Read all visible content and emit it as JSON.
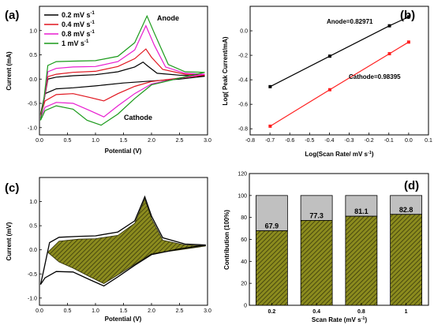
{
  "colors": {
    "s1": "#000000",
    "s2": "#e0151e",
    "s3": "#e81cd0",
    "s4": "#1a9a1a",
    "cathode_fit": "#ff2020",
    "fill_capacitive": "#8b8b1e",
    "fill_diffusion": "#c0c0c0"
  },
  "chart_data": [
    {
      "panel": "(a)",
      "type": "line",
      "xlabel": "Potential (V)",
      "ylabel": "Current (mA)",
      "xlim": [
        0,
        3.0
      ],
      "ylim": [
        -1.15,
        1.5
      ],
      "xticks": [
        "0.0",
        "0.5",
        "1.0",
        "1.5",
        "2.0",
        "2.5",
        "3.0"
      ],
      "yticks": [
        "-1.0",
        "-0.5",
        "0.0",
        "0.5",
        "1.0"
      ],
      "legend": {
        "position": "top-left",
        "entries": [
          "0.2 mV s",
          "0.4 mV s",
          "0.8 mV s",
          "1 mV s"
        ],
        "superscript": "-1"
      },
      "annotations": [
        "Anode",
        "Cathode"
      ],
      "series": [
        {
          "name": "0.2 mV s⁻¹",
          "color": "#000000",
          "upper": [
            [
              0.02,
              -0.72
            ],
            [
              0.08,
              -0.45
            ],
            [
              0.15,
              0.0
            ],
            [
              0.3,
              0.04
            ],
            [
              0.6,
              0.07
            ],
            [
              1.0,
              0.09
            ],
            [
              1.4,
              0.15
            ],
            [
              1.7,
              0.25
            ],
            [
              1.85,
              0.35
            ],
            [
              1.92,
              0.28
            ],
            [
              2.1,
              0.12
            ],
            [
              2.5,
              0.08
            ],
            [
              2.95,
              0.06
            ]
          ],
          "lower": [
            [
              2.95,
              0.06
            ],
            [
              2.5,
              0.0
            ],
            [
              2.0,
              -0.04
            ],
            [
              1.5,
              -0.08
            ],
            [
              1.0,
              -0.14
            ],
            [
              0.6,
              -0.18
            ],
            [
              0.3,
              -0.2
            ],
            [
              0.1,
              -0.3
            ],
            [
              0.02,
              -0.72
            ]
          ]
        },
        {
          "name": "0.4 mV s⁻¹",
          "color": "#e0151e",
          "upper": [
            [
              0.02,
              -0.75
            ],
            [
              0.08,
              -0.45
            ],
            [
              0.15,
              0.05
            ],
            [
              0.3,
              0.1
            ],
            [
              0.6,
              0.14
            ],
            [
              1.0,
              0.16
            ],
            [
              1.4,
              0.26
            ],
            [
              1.7,
              0.42
            ],
            [
              1.9,
              0.62
            ],
            [
              2.0,
              0.45
            ],
            [
              2.2,
              0.2
            ],
            [
              2.6,
              0.1
            ],
            [
              2.95,
              0.08
            ]
          ],
          "lower": [
            [
              2.95,
              0.08
            ],
            [
              2.5,
              0.02
            ],
            [
              2.0,
              -0.05
            ],
            [
              1.7,
              -0.15
            ],
            [
              1.4,
              -0.3
            ],
            [
              1.15,
              -0.45
            ],
            [
              0.9,
              -0.38
            ],
            [
              0.6,
              -0.3
            ],
            [
              0.3,
              -0.32
            ],
            [
              0.1,
              -0.45
            ],
            [
              0.02,
              -0.75
            ]
          ]
        },
        {
          "name": "0.8 mV s⁻¹",
          "color": "#e81cd0",
          "upper": [
            [
              0.02,
              -0.8
            ],
            [
              0.08,
              -0.45
            ],
            [
              0.15,
              0.15
            ],
            [
              0.3,
              0.22
            ],
            [
              0.6,
              0.25
            ],
            [
              1.0,
              0.26
            ],
            [
              1.4,
              0.36
            ],
            [
              1.7,
              0.6
            ],
            [
              1.9,
              1.1
            ],
            [
              2.05,
              0.7
            ],
            [
              2.25,
              0.25
            ],
            [
              2.6,
              0.12
            ],
            [
              2.95,
              0.1
            ]
          ],
          "lower": [
            [
              2.95,
              0.1
            ],
            [
              2.5,
              0.02
            ],
            [
              2.0,
              -0.1
            ],
            [
              1.7,
              -0.3
            ],
            [
              1.4,
              -0.55
            ],
            [
              1.15,
              -0.78
            ],
            [
              0.9,
              -0.65
            ],
            [
              0.6,
              -0.5
            ],
            [
              0.3,
              -0.48
            ],
            [
              0.1,
              -0.58
            ],
            [
              0.02,
              -0.8
            ]
          ]
        },
        {
          "name": "1 mV s⁻¹",
          "color": "#1a9a1a",
          "upper": [
            [
              0.02,
              -0.85
            ],
            [
              0.08,
              -0.4
            ],
            [
              0.15,
              0.28
            ],
            [
              0.3,
              0.36
            ],
            [
              0.6,
              0.37
            ],
            [
              1.0,
              0.38
            ],
            [
              1.4,
              0.47
            ],
            [
              1.7,
              0.75
            ],
            [
              1.92,
              1.3
            ],
            [
              2.05,
              0.95
            ],
            [
              2.3,
              0.3
            ],
            [
              2.6,
              0.15
            ],
            [
              2.95,
              0.14
            ]
          ],
          "lower": [
            [
              2.95,
              0.14
            ],
            [
              2.5,
              0.02
            ],
            [
              2.0,
              -0.12
            ],
            [
              1.7,
              -0.4
            ],
            [
              1.4,
              -0.72
            ],
            [
              1.1,
              -0.95
            ],
            [
              0.85,
              -0.85
            ],
            [
              0.6,
              -0.62
            ],
            [
              0.3,
              -0.55
            ],
            [
              0.1,
              -0.65
            ],
            [
              0.02,
              -0.85
            ]
          ]
        }
      ]
    },
    {
      "panel": "(b)",
      "type": "line",
      "xlabel": "Log(Scan Rate/ mV s",
      "xlabel_sup": "-1",
      "xlabel_end": ")",
      "ylabel": "Log( Peak Current/mA)",
      "xlim": [
        -0.8,
        0.1
      ],
      "ylim": [
        -0.85,
        0.2
      ],
      "xticks": [
        "-0.8",
        "-0.7",
        "-0.6",
        "-0.5",
        "-0.4",
        "-0.3",
        "-0.2",
        "-0.1",
        "0.0",
        "0.1"
      ],
      "yticks": [
        "-0.8",
        "-0.6",
        "-0.4",
        "-0.2",
        "0.0"
      ],
      "annotations": [
        "Anode=0.82971",
        "Cathode=0.98395"
      ],
      "series": [
        {
          "name": "Anode",
          "color": "#000000",
          "x": [
            -0.699,
            -0.398,
            -0.097,
            0.0
          ],
          "y": [
            -0.456,
            -0.207,
            0.041,
            0.114
          ]
        },
        {
          "name": "Cathode",
          "color": "#ff2020",
          "x": [
            -0.699,
            -0.398,
            -0.097,
            0.0
          ],
          "y": [
            -0.779,
            -0.481,
            -0.187,
            -0.092
          ]
        }
      ]
    },
    {
      "panel": "(c)",
      "type": "area",
      "xlabel": "Potential (V)",
      "ylabel": "Current (mV)",
      "xlim": [
        0,
        3.0
      ],
      "ylim": [
        -1.15,
        1.5
      ],
      "xticks": [
        "0.0",
        "0.5",
        "1.0",
        "1.5",
        "2.0",
        "2.5",
        "3.0"
      ],
      "yticks": [
        "-1.0",
        "-0.5",
        "0.0",
        "0.5",
        "1.0"
      ],
      "total_cv": {
        "upper": [
          [
            0.02,
            -0.72
          ],
          [
            0.08,
            -0.4
          ],
          [
            0.18,
            0.15
          ],
          [
            0.35,
            0.26
          ],
          [
            0.7,
            0.28
          ],
          [
            1.0,
            0.29
          ],
          [
            1.4,
            0.37
          ],
          [
            1.7,
            0.6
          ],
          [
            1.88,
            1.1
          ],
          [
            2.0,
            0.7
          ],
          [
            2.2,
            0.25
          ],
          [
            2.6,
            0.12
          ],
          [
            2.97,
            0.1
          ]
        ],
        "lower": [
          [
            2.97,
            0.1
          ],
          [
            2.5,
            0.02
          ],
          [
            2.0,
            -0.1
          ],
          [
            1.7,
            -0.32
          ],
          [
            1.4,
            -0.56
          ],
          [
            1.15,
            -0.75
          ],
          [
            0.9,
            -0.62
          ],
          [
            0.6,
            -0.46
          ],
          [
            0.3,
            -0.45
          ],
          [
            0.1,
            -0.58
          ],
          [
            0.02,
            -0.72
          ]
        ]
      },
      "capacitive": {
        "upper": [
          [
            0.15,
            -0.05
          ],
          [
            0.35,
            0.18
          ],
          [
            0.7,
            0.22
          ],
          [
            1.0,
            0.23
          ],
          [
            1.4,
            0.3
          ],
          [
            1.7,
            0.55
          ],
          [
            1.88,
            1.05
          ],
          [
            2.0,
            0.65
          ],
          [
            2.2,
            0.2
          ],
          [
            2.6,
            0.1
          ],
          [
            2.97,
            0.08
          ]
        ],
        "lower": [
          [
            2.97,
            0.08
          ],
          [
            2.5,
            0.0
          ],
          [
            2.0,
            -0.08
          ],
          [
            1.7,
            -0.3
          ],
          [
            1.4,
            -0.52
          ],
          [
            1.15,
            -0.7
          ],
          [
            0.9,
            -0.56
          ],
          [
            0.6,
            -0.38
          ],
          [
            0.35,
            -0.25
          ],
          [
            0.15,
            -0.05
          ]
        ]
      }
    },
    {
      "panel": "(d)",
      "type": "bar",
      "xlabel": "Scan Rate (mV s",
      "xlabel_sup": "-1",
      "xlabel_end": ")",
      "ylabel": "Contribution (100%)",
      "ylim": [
        0,
        120
      ],
      "yticks": [
        "0",
        "20",
        "40",
        "60",
        "80",
        "100",
        "120"
      ],
      "categories": [
        "0.2",
        "0.4",
        "0.8",
        "1"
      ],
      "values": [
        67.9,
        77.3,
        81.1,
        82.8
      ],
      "labels": [
        "67.9",
        "77.3",
        "81.1",
        "82.8"
      ],
      "total": 100
    }
  ]
}
